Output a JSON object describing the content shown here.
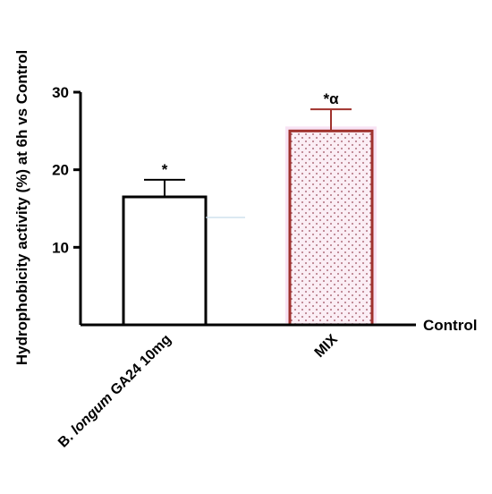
{
  "chart_data": {
    "type": "bar",
    "ylabel": "Hydrophobicity activity (%) at 6h vs Control",
    "baseline_label": "Control",
    "ylim": [
      0,
      30
    ],
    "yticks": [
      10,
      20,
      30
    ],
    "categories": [
      {
        "prefix": "B. ",
        "italic": "longum",
        "suffix": " GA24 10mg"
      },
      {
        "prefix": "MIX",
        "italic": "",
        "suffix": ""
      }
    ],
    "values": [
      16.5,
      25.0
    ],
    "errors": [
      2.2,
      2.8
    ],
    "significance": [
      "*",
      "*α"
    ],
    "grid": false,
    "legend": "none",
    "colors": {
      "bar1_edge": "#000000",
      "bar1_fill": "#ffffff",
      "bar2_edge": "#a0322d",
      "bar2_fill": "#fbeef5",
      "bar2_dots": "#9a4a5a",
      "bar2_glow": "#f2c8ea"
    }
  }
}
